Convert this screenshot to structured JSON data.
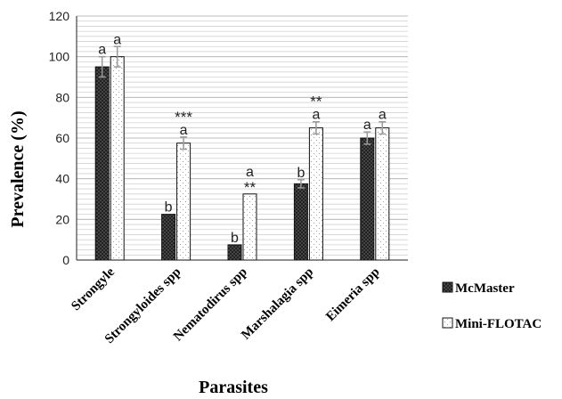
{
  "chart_data": {
    "type": "bar",
    "xlabel": "Parasites",
    "ylabel": "Prevalence (%)",
    "ylim": [
      0,
      120
    ],
    "yticks": [
      0,
      20,
      40,
      60,
      80,
      100,
      120
    ],
    "grid": true,
    "legend_position": "right",
    "categories": [
      "Strongyle",
      "Strongyloides spp",
      "Nematodirus spp",
      "Marshalagia spp",
      "Eimeria spp"
    ],
    "series": [
      {
        "name": "McMaster",
        "values": [
          95,
          22.5,
          7.5,
          37.5,
          60
        ],
        "errors": [
          5,
          0,
          0,
          2,
          3
        ],
        "letters": [
          "a",
          "b",
          "b",
          "b",
          "a"
        ],
        "significance": [
          "",
          "",
          "",
          "",
          ""
        ],
        "color": "#333333"
      },
      {
        "name": "Mini-FLOTAC",
        "values": [
          100,
          57.5,
          32.5,
          65,
          65
        ],
        "errors": [
          5,
          3,
          0,
          3,
          3
        ],
        "letters": [
          "a",
          "a",
          "a",
          "a",
          "a"
        ],
        "significance": [
          "",
          "***",
          "**",
          "**",
          ""
        ],
        "color": "#ffffff"
      }
    ]
  }
}
